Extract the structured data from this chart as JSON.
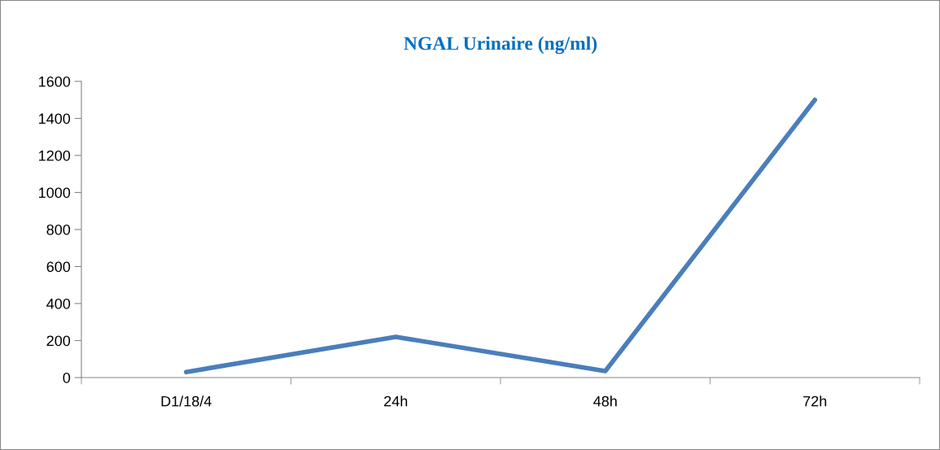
{
  "chart_data": {
    "type": "line",
    "title": "NGAL Urinaire (ng/ml)",
    "categories": [
      "D1/18/4",
      "24h",
      "48h",
      "72h"
    ],
    "series": [
      {
        "color": "#4a7ebb",
        "values": [
          30,
          220,
          35,
          1500
        ]
      }
    ],
    "ylim": [
      0,
      1600
    ],
    "yticks": [
      0,
      200,
      400,
      600,
      800,
      1000,
      1200,
      1400,
      1600
    ],
    "grid": false,
    "legend": false,
    "marker": "none",
    "line_style": "solid"
  }
}
